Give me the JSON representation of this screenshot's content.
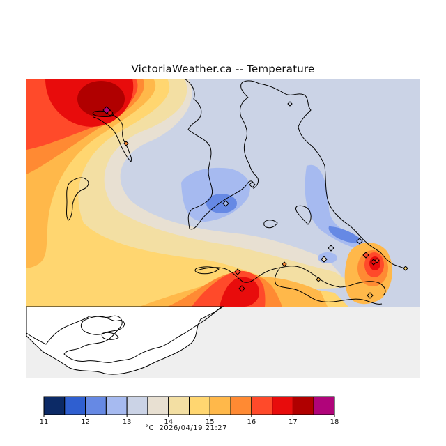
{
  "title": "VictoriaWeather.ca -- Temperature",
  "footer": {
    "unit": "°C",
    "timestamp": "2026/04/19 21:27"
  },
  "legend": {
    "ticks": [
      "11",
      "12",
      "13",
      "14",
      "15",
      "16",
      "17",
      "18"
    ],
    "colors": [
      "#0c2a66",
      "#2f5fd0",
      "#6689e4",
      "#a6baf0",
      "#cbd3e6",
      "#e8e0d2",
      "#f3dfa3",
      "#ffd670",
      "#ffb84a",
      "#ff8a33",
      "#ff4a2a",
      "#e80c0c",
      "#b00000",
      "#b0047a"
    ]
  },
  "colors": {
    "land_background": "#efefef",
    "water": "#ffffff",
    "coastline": "#000000",
    "station_marker": "#c05fc0"
  },
  "stations": [
    {
      "temp_band": "17-18"
    },
    {
      "temp_band": "16-17"
    },
    {
      "temp_band": "15-16"
    },
    {
      "temp_band": "13-14"
    },
    {
      "temp_band": "12-13"
    },
    {
      "temp_band": "13-14"
    },
    {
      "temp_band": "12-13"
    },
    {
      "temp_band": "13-14"
    },
    {
      "temp_band": "14-15"
    },
    {
      "temp_band": "16-17"
    },
    {
      "temp_band": "17-18"
    },
    {
      "temp_band": "16-17"
    },
    {
      "temp_band": "14-15"
    },
    {
      "temp_band": "15-16"
    },
    {
      "temp_band": "16-17"
    },
    {
      "temp_band": "15-16"
    },
    {
      "temp_band": "16-17"
    }
  ]
}
